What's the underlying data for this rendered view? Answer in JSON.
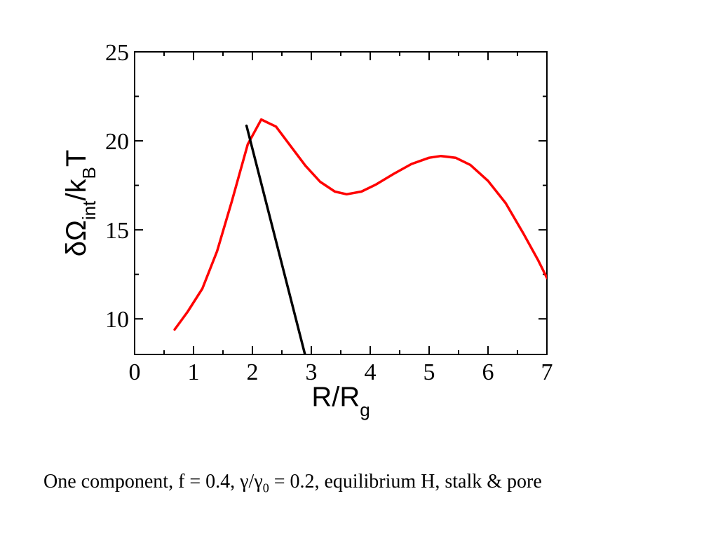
{
  "chart_data": {
    "type": "line",
    "xlabel": {
      "main": "R/R",
      "sub": "g"
    },
    "ylabel": {
      "p1": "δΩ",
      "sub1": "int",
      "p2": "/k",
      "sub2": "B",
      "p3": "T"
    },
    "xlim": [
      0,
      7
    ],
    "ylim": [
      8,
      25
    ],
    "x_ticks": [
      0,
      1,
      2,
      3,
      4,
      5,
      6,
      7
    ],
    "y_ticks": [
      10,
      15,
      20,
      25
    ],
    "x_tick_labels": [
      "0",
      "1",
      "2",
      "3",
      "4",
      "5",
      "6",
      "7"
    ],
    "y_tick_labels": [
      "10",
      "15",
      "20",
      "25"
    ],
    "grid": false,
    "series": [
      {
        "color": "#ff0000",
        "points": [
          [
            0.68,
            9.4
          ],
          [
            0.9,
            10.4
          ],
          [
            1.15,
            11.7
          ],
          [
            1.4,
            13.8
          ],
          [
            1.65,
            16.6
          ],
          [
            1.92,
            19.8
          ],
          [
            2.15,
            21.2
          ],
          [
            2.4,
            20.8
          ],
          [
            2.65,
            19.7
          ],
          [
            2.9,
            18.6
          ],
          [
            3.15,
            17.7
          ],
          [
            3.4,
            17.15
          ],
          [
            3.6,
            17.0
          ],
          [
            3.85,
            17.15
          ],
          [
            4.1,
            17.55
          ],
          [
            4.4,
            18.15
          ],
          [
            4.7,
            18.7
          ],
          [
            5.0,
            19.05
          ],
          [
            5.2,
            19.15
          ],
          [
            5.45,
            19.05
          ],
          [
            5.7,
            18.65
          ],
          [
            6.0,
            17.75
          ],
          [
            6.3,
            16.5
          ],
          [
            6.6,
            14.8
          ],
          [
            6.85,
            13.3
          ],
          [
            7.0,
            12.3
          ]
        ]
      },
      {
        "color": "#000000",
        "points": [
          [
            1.9,
            20.85
          ],
          [
            2.9,
            7.9
          ]
        ]
      }
    ]
  },
  "caption": {
    "part1": "One component, f = 0.4, γ/γ",
    "sub": "0",
    "part2": " = 0.2, equilibrium H, stalk & pore"
  }
}
